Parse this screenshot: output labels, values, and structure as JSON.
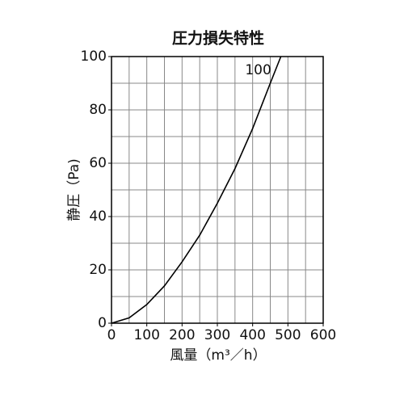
{
  "chart_data": {
    "type": "line",
    "title": "圧力損失特性",
    "x_label": "風量（m³／h）",
    "y_label": "静圧（Pa)",
    "x": [
      0,
      50,
      100,
      150,
      200,
      250,
      300,
      350,
      400,
      450,
      480
    ],
    "series": [
      {
        "name": "100",
        "color": "#000000",
        "values": [
          0,
          2,
          7,
          14,
          23,
          33,
          45,
          58,
          73,
          90,
          100
        ]
      }
    ],
    "xlim": [
      0,
      600
    ],
    "ylim": [
      0,
      100
    ],
    "xticks": [
      0,
      100,
      200,
      300,
      400,
      500,
      600
    ],
    "yticks": [
      0,
      20,
      40,
      60,
      80,
      100
    ],
    "xgrid": [
      0,
      50,
      100,
      150,
      200,
      250,
      300,
      350,
      400,
      450,
      500,
      550,
      600
    ],
    "ygrid": [
      0,
      10,
      20,
      30,
      40,
      50,
      60,
      70,
      80,
      90,
      100
    ],
    "grid": true
  }
}
